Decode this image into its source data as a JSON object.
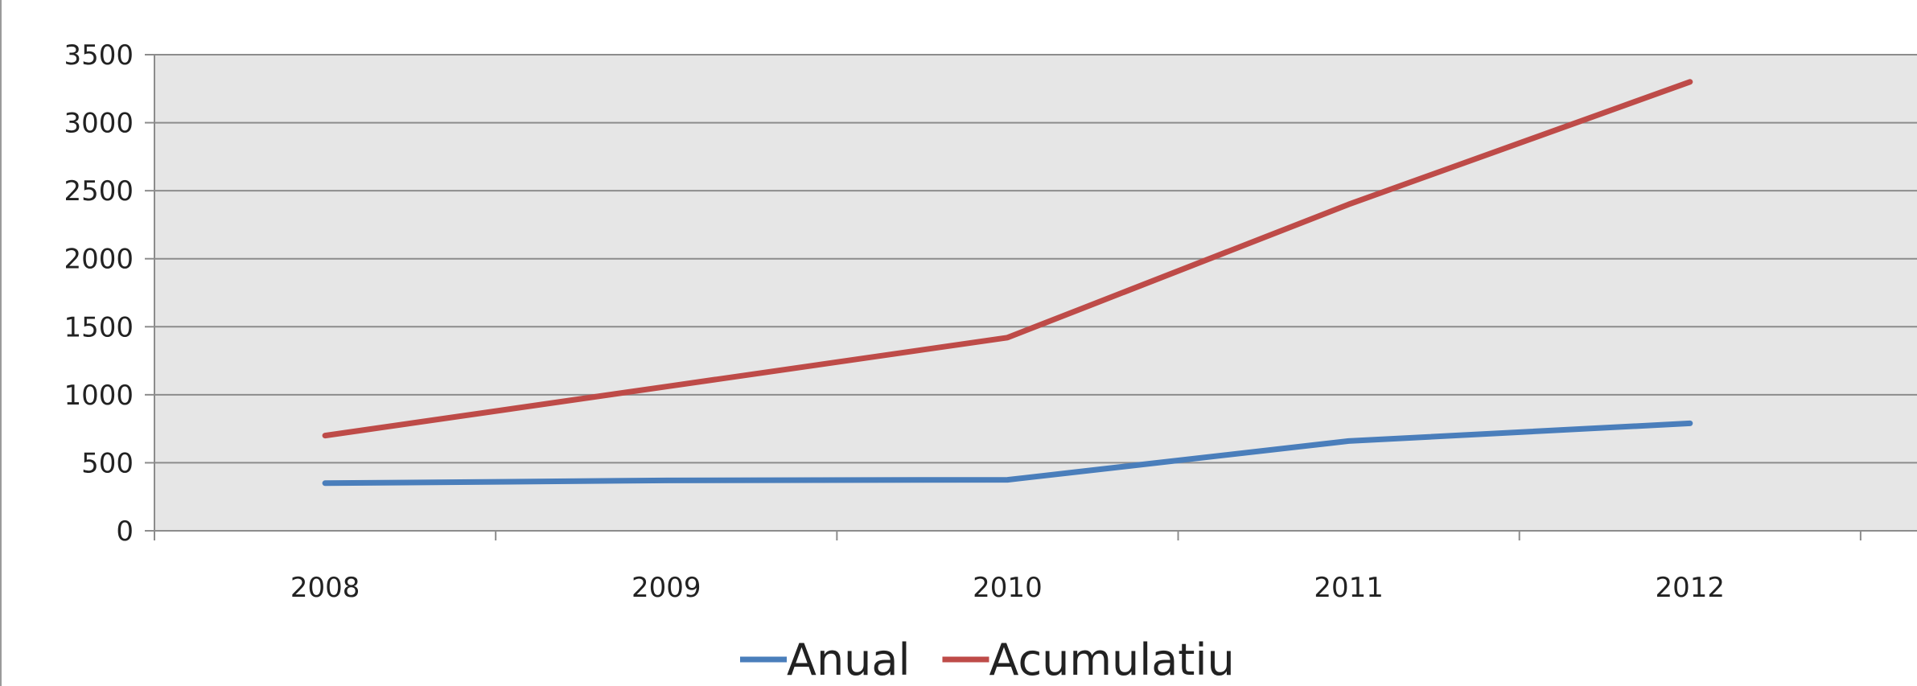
{
  "chart_data": {
    "type": "line",
    "title": "",
    "xlabel": "",
    "ylabel": "",
    "categories": [
      "2008",
      "2009",
      "2010",
      "2011",
      "2012"
    ],
    "ylim": [
      0,
      3500
    ],
    "yticks": [
      "0",
      "500",
      "1000",
      "1500",
      "2000",
      "2500",
      "3000",
      "3500"
    ],
    "grid": true,
    "legend_position": "bottom",
    "plot_background": "#e6e6e6",
    "series": [
      {
        "name": "Anual",
        "color": "#4a7ebb",
        "values": [
          350,
          370,
          375,
          660,
          790
        ]
      },
      {
        "name": "Acumulatiu",
        "color": "#be4b48",
        "values": [
          700,
          1060,
          1420,
          2400,
          3300
        ]
      }
    ]
  }
}
